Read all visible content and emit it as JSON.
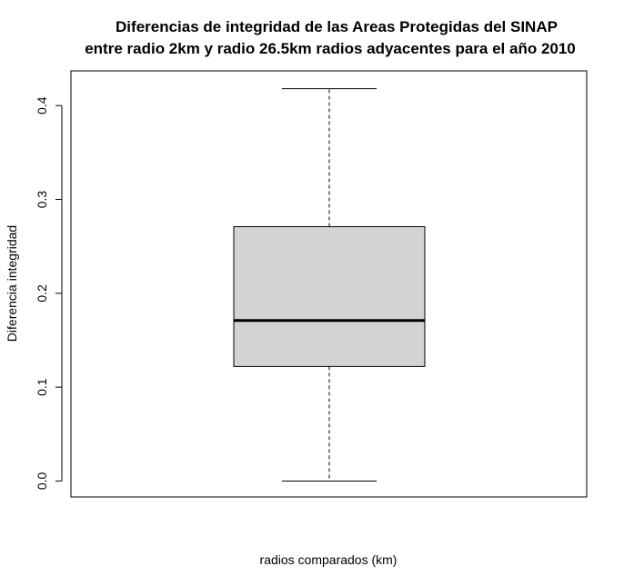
{
  "chart_data": {
    "type": "box",
    "title_line1": "Diferencias de integridad de las Areas Protegidas del SINAP",
    "title_line2": "entre radio 2km y radio 26.5km radios adyacentes para el año 2010",
    "xlabel": "radios comparados (km)",
    "ylabel": "Diferencia integridad",
    "ylim": [
      -0.017,
      0.437
    ],
    "yticks": [
      0.0,
      0.1,
      0.2,
      0.3,
      0.4
    ],
    "ytick_labels": [
      "0.0",
      "0.1",
      "0.2",
      "0.3",
      "0.4"
    ],
    "box": {
      "min": 0.0,
      "q1": 0.122,
      "median": 0.171,
      "q3": 0.271,
      "max": 0.418
    },
    "colors": {
      "box_fill": "#d3d3d3",
      "line": "#000000"
    }
  }
}
